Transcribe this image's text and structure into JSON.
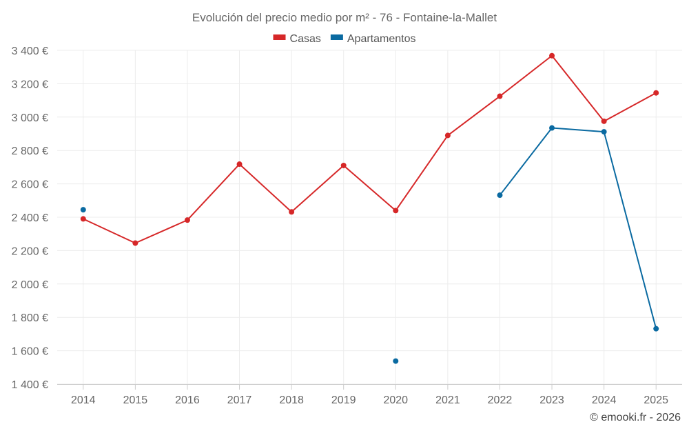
{
  "chart_data": {
    "type": "line",
    "title": "Evolución del precio medio por m² - 76 - Fontaine-la-Mallet",
    "categories": [
      "2014",
      "2015",
      "2016",
      "2017",
      "2018",
      "2019",
      "2020",
      "2021",
      "2022",
      "2023",
      "2024",
      "2025"
    ],
    "ylim": [
      1400,
      3400
    ],
    "yticks": [
      1400,
      1600,
      1800,
      2000,
      2200,
      2400,
      2600,
      2800,
      3000,
      3200,
      3400
    ],
    "ytick_labels": [
      "1 400 €",
      "1 600 €",
      "1 800 €",
      "2 000 €",
      "2 200 €",
      "2 400 €",
      "2 600 €",
      "2 800 €",
      "3 000 €",
      "3 200 €",
      "3 400 €"
    ],
    "grid": true,
    "legend_position": "top-center",
    "series": [
      {
        "name": "Casas",
        "color": "#d62728",
        "values": [
          2390,
          2245,
          2383,
          2718,
          2432,
          2710,
          2440,
          2890,
          3125,
          3368,
          2975,
          3145
        ]
      },
      {
        "name": "Apartamentos",
        "color": "#0a6aa1",
        "values": [
          2445,
          null,
          null,
          null,
          null,
          null,
          1538,
          null,
          2532,
          2935,
          2912,
          1732
        ]
      }
    ],
    "credit": "© emooki.fr - 2026"
  }
}
